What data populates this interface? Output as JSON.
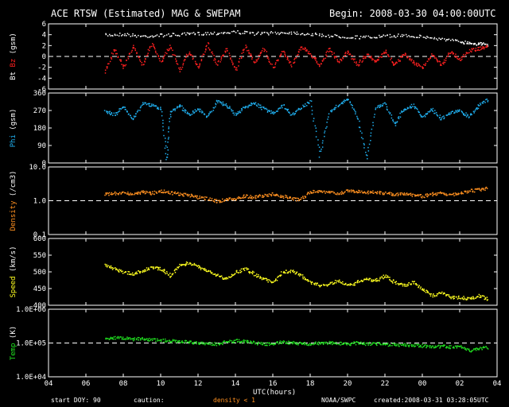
{
  "header": {
    "title": "ACE RTSW (Estimated) MAG & SWEPAM",
    "begin": "Begin: 2008-03-30 04:00:00UTC"
  },
  "footer": {
    "start_doy_label": "start DOY:",
    "start_doy_value": "90",
    "caution_label": "caution:",
    "caution_value": "density < 1",
    "org": "NOAA/SWPC",
    "created": "created:2008-03-31 03:28:05UTC"
  },
  "colors": {
    "bt": "#ffffff",
    "bz": "#ff2020",
    "phi": "#20b0f0",
    "density": "#ff9020",
    "speed": "#ffff20",
    "temp": "#20e020",
    "frame": "#ffffff",
    "background": "#000000"
  },
  "chart_data": {
    "type": "scatter",
    "x_axis": {
      "label": "UTC(hours)",
      "range": [
        4,
        28
      ],
      "ticks": [
        "04",
        "06",
        "08",
        "10",
        "12",
        "14",
        "16",
        "18",
        "20",
        "22",
        "00",
        "02",
        "04"
      ]
    },
    "panels": [
      {
        "id": "mag",
        "ylabel_parts": [
          "Bt",
          "Bz",
          "(gsm)"
        ],
        "ylim": [
          -6,
          6
        ],
        "yscale": "linear",
        "ticks": [
          "6",
          "4",
          "2",
          "0",
          "-2",
          "-4",
          "-6"
        ],
        "tick_values": [
          6,
          4,
          2,
          0,
          -2,
          -4,
          -6
        ],
        "reference_line": 0,
        "series": [
          {
            "name": "Bt",
            "color_key": "bt",
            "x": [
              7,
              8,
              9,
              10,
              11,
              12,
              13,
              14,
              15,
              16,
              17,
              18,
              19,
              20,
              21,
              22,
              23,
              24,
              25,
              26,
              26.5,
              27,
              27.5
            ],
            "y": [
              4,
              4.2,
              3.8,
              4,
              4.1,
              4.3,
              4.4,
              4.6,
              4.3,
              4.4,
              4.5,
              4.2,
              3.9,
              3.7,
              3.6,
              3.8,
              4,
              3.7,
              3.3,
              2.8,
              2.6,
              2.4,
              2.3
            ]
          },
          {
            "name": "Bz",
            "color_key": "bz",
            "x": [
              7,
              7.5,
              8,
              8.5,
              9,
              9.5,
              10,
              10.5,
              11,
              11.5,
              12,
              12.5,
              13,
              13.5,
              14,
              14.5,
              15,
              15.5,
              16,
              16.5,
              17,
              17.5,
              18,
              18.5,
              19,
              19.5,
              20,
              20.5,
              21,
              21.5,
              22,
              22.5,
              23,
              23.5,
              24,
              24.5,
              25,
              25.5,
              26,
              26.5,
              27,
              27.5
            ],
            "y": [
              -3,
              1.5,
              -2,
              2,
              -1.5,
              2.5,
              -1,
              2,
              -2.5,
              1,
              -2,
              2.5,
              -1.5,
              1.5,
              -2.5,
              2,
              -1,
              1.5,
              -2,
              1,
              -1.5,
              2,
              0.5,
              -1.5,
              1.5,
              -1,
              1,
              -1.5,
              0.5,
              -1,
              1,
              -1.5,
              0.5,
              -1,
              -2,
              0.5,
              -1.5,
              1,
              -0.5,
              1.2,
              1.5,
              2
            ]
          }
        ]
      },
      {
        "id": "phi",
        "ylabel_parts": [
          "Phi",
          "(gsm)"
        ],
        "ylim": [
          0,
          360
        ],
        "yscale": "linear",
        "ticks": [
          "360",
          "270",
          "180",
          "90",
          "0"
        ],
        "tick_values": [
          360,
          270,
          180,
          90,
          0
        ],
        "series": [
          {
            "name": "Phi",
            "color_key": "phi",
            "x": [
              7,
              7.5,
              8,
              8.5,
              9,
              9.5,
              10,
              10.3,
              10.5,
              11,
              11.5,
              12,
              12.5,
              13,
              13.5,
              14,
              14.5,
              15,
              15.5,
              16,
              16.5,
              17,
              17.5,
              18,
              18.5,
              19,
              19.5,
              20,
              20.5,
              21,
              21.5,
              22,
              22.5,
              23,
              23.5,
              24,
              24.5,
              25,
              25.5,
              26,
              26.5,
              27,
              27.5
            ],
            "y": [
              270,
              250,
              290,
              230,
              310,
              300,
              280,
              20,
              260,
              300,
              250,
              280,
              240,
              320,
              300,
              250,
              290,
              310,
              280,
              260,
              300,
              250,
              290,
              320,
              40,
              260,
              300,
              330,
              240,
              30,
              290,
              310,
              200,
              280,
              300,
              240,
              280,
              230,
              260,
              270,
              240,
              300,
              330
            ]
          }
        ]
      },
      {
        "id": "density",
        "ylabel_parts": [
          "Density",
          "(/cm3)"
        ],
        "ylim": [
          0.1,
          10
        ],
        "yscale": "log",
        "ticks": [
          "10.0",
          "1.0",
          "0.1"
        ],
        "tick_values": [
          10,
          1,
          0.1
        ],
        "reference_line": 1,
        "series": [
          {
            "name": "Density",
            "color_key": "density",
            "x": [
              7,
              7.5,
              8,
              8.5,
              9,
              9.5,
              10,
              10.5,
              11,
              11.5,
              12,
              12.5,
              13,
              13.5,
              14,
              14.5,
              15,
              15.5,
              16,
              16.5,
              17,
              17.5,
              18,
              18.5,
              19,
              19.5,
              20,
              20.5,
              21,
              21.5,
              22,
              22.5,
              23,
              23.5,
              24,
              24.5,
              25,
              25.5,
              26,
              26.5,
              27,
              27.5
            ],
            "y": [
              1.6,
              1.7,
              1.8,
              1.6,
              1.9,
              1.7,
              2.0,
              1.8,
              1.6,
              1.5,
              1.3,
              1.2,
              1.0,
              1.1,
              1.2,
              1.4,
              1.3,
              1.5,
              1.6,
              1.4,
              1.2,
              1.1,
              1.9,
              2.0,
              1.8,
              1.7,
              2.0,
              1.9,
              1.8,
              1.9,
              1.7,
              1.6,
              1.7,
              1.5,
              1.4,
              1.6,
              1.8,
              1.5,
              1.7,
              2.0,
              2.2,
              2.4
            ]
          }
        ]
      },
      {
        "id": "speed",
        "ylabel_parts": [
          "Speed",
          "(km/s)"
        ],
        "ylim": [
          400,
          600
        ],
        "yscale": "linear",
        "ticks": [
          "600",
          "550",
          "500",
          "450",
          "400"
        ],
        "tick_values": [
          600,
          550,
          500,
          450,
          400
        ],
        "series": [
          {
            "name": "Speed",
            "color_key": "speed",
            "x": [
              7,
              7.5,
              8,
              8.5,
              9,
              9.5,
              10,
              10.5,
              11,
              11.5,
              12,
              12.5,
              13,
              13.5,
              14,
              14.5,
              15,
              15.5,
              16,
              16.5,
              17,
              17.5,
              18,
              18.5,
              19,
              19.5,
              20,
              20.5,
              21,
              21.5,
              22,
              22.5,
              23,
              23.5,
              24,
              24.5,
              25,
              25.5,
              26,
              26.5,
              27,
              27.5
            ],
            "y": [
              520,
              510,
              500,
              495,
              505,
              515,
              510,
              490,
              520,
              530,
              515,
              505,
              490,
              480,
              500,
              510,
              495,
              480,
              470,
              500,
              505,
              490,
              470,
              460,
              465,
              475,
              460,
              470,
              480,
              475,
              490,
              470,
              460,
              470,
              450,
              430,
              440,
              425,
              425,
              420,
              430,
              420
            ]
          }
        ]
      },
      {
        "id": "temp",
        "ylabel_parts": [
          "Temp",
          "(K)"
        ],
        "ylim": [
          10000,
          1000000
        ],
        "yscale": "log",
        "ticks": [
          "1.0E+06",
          "1.0E+05",
          "1.0E+04"
        ],
        "tick_values": [
          1000000,
          100000,
          10000
        ],
        "reference_line": 100000,
        "series": [
          {
            "name": "Temp",
            "color_key": "temp",
            "x": [
              7,
              7.5,
              8,
              8.5,
              9,
              9.5,
              10,
              10.5,
              11,
              11.5,
              12,
              12.5,
              13,
              13.5,
              14,
              14.5,
              15,
              15.5,
              16,
              16.5,
              17,
              17.5,
              18,
              18.5,
              19,
              19.5,
              20,
              20.5,
              21,
              21.5,
              22,
              22.5,
              23,
              23.5,
              24,
              24.5,
              25,
              25.5,
              26,
              26.5,
              27,
              27.5
            ],
            "y": [
              140000,
              150000,
              145000,
              135000,
              140000,
              130000,
              125000,
              120000,
              115000,
              110000,
              105000,
              100000,
              95000,
              110000,
              120000,
              115000,
              105000,
              95000,
              100000,
              110000,
              105000,
              100000,
              98000,
              102000,
              105000,
              100000,
              95000,
              105000,
              98000,
              100000,
              95000,
              90000,
              92000,
              88000,
              85000,
              80000,
              82000,
              78000,
              80000,
              60000,
              70000,
              75000
            ]
          }
        ]
      }
    ]
  }
}
